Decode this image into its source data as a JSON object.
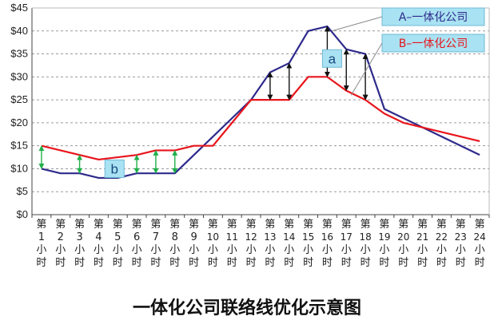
{
  "chart_data": {
    "type": "line",
    "title": "一体化公司联络线优化示意图",
    "categories": [
      "第1小时",
      "第2小时",
      "第3小时",
      "第4小时",
      "第5小时",
      "第6小时",
      "第7小时",
      "第8小时",
      "第9小时",
      "第10小时",
      "第11小时",
      "第12小时",
      "第13小时",
      "第14小时",
      "第15小时",
      "第16小时",
      "第17小时",
      "第18小时",
      "第19小时",
      "第20小时",
      "第21小时",
      "第22小时",
      "第23小时",
      "第24小时"
    ],
    "x_ticks": [
      [
        "第",
        "1",
        "小",
        "时"
      ],
      [
        "第",
        "2",
        "小",
        "时"
      ],
      [
        "第",
        "3",
        "小",
        "时"
      ],
      [
        "第",
        "4",
        "小",
        "时"
      ],
      [
        "第",
        "5",
        "小",
        "时"
      ],
      [
        "第",
        "6",
        "小",
        "时"
      ],
      [
        "第",
        "7",
        "小",
        "时"
      ],
      [
        "第",
        "8",
        "小",
        "时"
      ],
      [
        "第",
        "9",
        "小",
        "时"
      ],
      [
        "第",
        "10",
        "小",
        "时"
      ],
      [
        "第",
        "11",
        "小",
        "时"
      ],
      [
        "第",
        "12",
        "小",
        "时"
      ],
      [
        "第",
        "13",
        "小",
        "时"
      ],
      [
        "第",
        "14",
        "小",
        "时"
      ],
      [
        "第",
        "15",
        "小",
        "时"
      ],
      [
        "第",
        "16",
        "小",
        "时"
      ],
      [
        "第",
        "17",
        "小",
        "时"
      ],
      [
        "第",
        "18",
        "小",
        "时"
      ],
      [
        "第",
        "19",
        "小",
        "时"
      ],
      [
        "第",
        "20",
        "小",
        "时"
      ],
      [
        "第",
        "21",
        "小",
        "时"
      ],
      [
        "第",
        "22",
        "小",
        "时"
      ],
      [
        "第",
        "23",
        "小",
        "时"
      ],
      [
        "第",
        "24",
        "小",
        "时"
      ]
    ],
    "y_ticks": [
      "$0",
      "$5",
      "$10",
      "$15",
      "$20",
      "$25",
      "$30",
      "$35",
      "$40",
      "$45"
    ],
    "ylim": [
      0,
      45
    ],
    "grid": true,
    "legend_position": "top-right",
    "series": [
      {
        "name": "A–一体化公司",
        "color": "#2e2a8c",
        "values": [
          10,
          9,
          9,
          8,
          8,
          9,
          9,
          9,
          13,
          17,
          21,
          25,
          31,
          33,
          40,
          41,
          36,
          35,
          23,
          21,
          19,
          17,
          15,
          13
        ]
      },
      {
        "name": "B–一体化公司",
        "color": "#e8151c",
        "values": [
          15,
          14,
          13,
          12,
          12.5,
          13,
          14,
          14,
          15,
          15,
          20,
          25,
          25,
          25,
          30,
          30,
          27,
          25,
          22,
          20,
          19,
          18,
          17,
          16
        ]
      }
    ],
    "annotations": [
      {
        "label": "a",
        "x_index": 15,
        "y": 34
      },
      {
        "label": "b",
        "x_index": 4,
        "y": 10
      }
    ],
    "gap_arrows": {
      "green": [
        0,
        2,
        5,
        6,
        7
      ],
      "black": [
        12,
        13,
        15,
        16,
        17
      ]
    }
  }
}
